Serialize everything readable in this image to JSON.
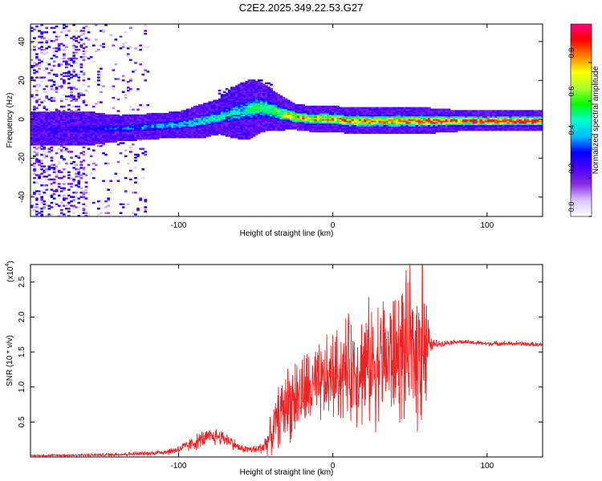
{
  "title": "C2E2.2025.349.22.53.G27",
  "colors": {
    "snr_line": "#ee2222",
    "axis": "#000000",
    "background": "#ffffff",
    "colormap": [
      "#ffffff",
      "#d9c6ff",
      "#8a2be2",
      "#4b00ff",
      "#0000ff",
      "#00bfff",
      "#00ffcc",
      "#00ff00",
      "#adff2f",
      "#ffff00",
      "#ff8000",
      "#ff0000",
      "#ff0080"
    ]
  },
  "chart_data": [
    {
      "type": "heatmap",
      "title": "C2E2.2025.349.22.53.G27",
      "xlabel": "Height of straight line (km)",
      "ylabel": "Frequency (Hz)",
      "xlim": [
        -196,
        136
      ],
      "ylim": [
        -50,
        49
      ],
      "xticks": [
        -100,
        0,
        100
      ],
      "xtick_labels": [
        "-100",
        "0",
        "100"
      ],
      "yticks": [
        -40,
        -20,
        0,
        20,
        40
      ],
      "ytick_labels": [
        "-40",
        "-20",
        "0",
        "20",
        "40"
      ],
      "colorbar": {
        "label": "Normalized spectral amplitude",
        "range": [
          0,
          1
        ],
        "ticks": [
          0.0,
          0.2,
          0.4,
          0.6,
          0.8
        ],
        "tick_labels": [
          "0.0",
          "0.2",
          "0.4",
          "0.6",
          "0.8"
        ]
      },
      "ridge": {
        "x": [
          -196,
          -160,
          -140,
          -120,
          -100,
          -85,
          -75,
          -65,
          -55,
          -48,
          -42,
          -35,
          -25,
          -15,
          -5,
          0,
          10,
          20,
          40,
          60,
          80,
          100,
          120,
          136
        ],
        "freq": [
          -5,
          -5,
          -5,
          -4,
          -3,
          -1,
          1,
          3,
          5,
          6,
          5,
          3,
          1,
          0,
          0,
          0,
          -1,
          -1,
          -1,
          -1,
          -1,
          -1,
          -1,
          -1
        ],
        "amplitude": [
          0.25,
          0.3,
          0.35,
          0.4,
          0.45,
          0.5,
          0.5,
          0.45,
          0.5,
          0.55,
          0.6,
          0.65,
          0.8,
          0.85,
          0.8,
          0.8,
          0.85,
          0.85,
          0.85,
          0.9,
          0.95,
          0.95,
          0.95,
          0.95
        ],
        "halfwidth": [
          4,
          4,
          3,
          3,
          3,
          4,
          4,
          6,
          7,
          6,
          5,
          4,
          3,
          3,
          3,
          3,
          3,
          3,
          3,
          3,
          2.5,
          2.5,
          2.5,
          2.5
        ]
      },
      "noise_region": {
        "x": [
          -196,
          -120
        ],
        "freq": [
          -50,
          49
        ]
      }
    },
    {
      "type": "line",
      "xlabel": "Height of straight line (km)",
      "ylabel": "SNR (10 * v/v)",
      "multiplier_label": "(x10",
      "multiplier_exponent": "4",
      "multiplier_close": ")",
      "xlim": [
        -196,
        136
      ],
      "ylim": [
        0,
        2.75
      ],
      "xticks": [
        -100,
        0,
        100
      ],
      "xtick_labels": [
        "-100",
        "0",
        "100"
      ],
      "yticks": [
        0.5,
        1.0,
        1.5,
        2.0,
        2.5
      ],
      "ytick_labels": [
        "0.5",
        "1.0",
        "1.5",
        "2.0",
        "2.5"
      ],
      "envelope": {
        "x": [
          -196,
          -150,
          -120,
          -105,
          -95,
          -85,
          -75,
          -68,
          -60,
          -50,
          -45,
          -40,
          -35,
          -30,
          -25,
          -20,
          -10,
          0,
          10,
          20,
          30,
          40,
          50,
          60,
          63,
          70,
          80,
          100,
          120,
          136
        ],
        "mean": [
          0.02,
          0.03,
          0.05,
          0.08,
          0.15,
          0.25,
          0.3,
          0.25,
          0.12,
          0.1,
          0.15,
          0.3,
          0.6,
          0.75,
          0.85,
          0.9,
          1.0,
          1.15,
          1.25,
          1.3,
          1.4,
          1.45,
          1.5,
          1.55,
          1.6,
          1.62,
          1.65,
          1.62,
          1.62,
          1.6
        ],
        "spread": [
          0.01,
          0.02,
          0.03,
          0.05,
          0.08,
          0.12,
          0.12,
          0.1,
          0.05,
          0.06,
          0.1,
          0.25,
          0.4,
          0.5,
          0.55,
          0.55,
          0.55,
          0.6,
          0.7,
          0.8,
          0.85,
          0.9,
          1.0,
          1.0,
          0.1,
          0.04,
          0.03,
          0.03,
          0.03,
          0.03
        ]
      },
      "peak": {
        "x": 58,
        "y": 2.78
      }
    }
  ]
}
